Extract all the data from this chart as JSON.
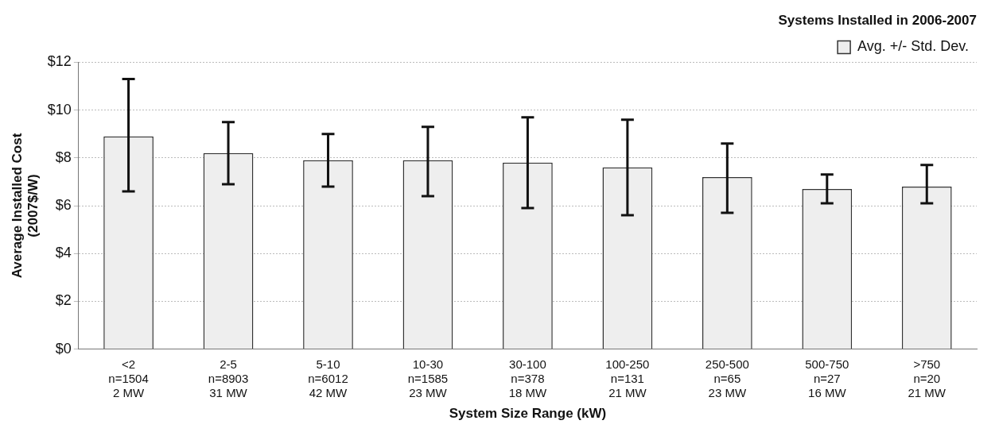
{
  "chart_data": {
    "type": "bar",
    "title": "Systems Installed in 2006-2007",
    "xlabel": "System Size Range (kW)",
    "ylabel": "Average Installed Cost\n(2007$/W)",
    "categories": [
      "<2\nn=1504\n2 MW",
      "2-5\nn=8903\n31 MW",
      "5-10\nn=6012\n42 MW",
      "10-30\nn=1585\n23 MW",
      "30-100\nn=378\n18 MW",
      "100-250\nn=131\n21 MW",
      "250-500\nn=65\n23 MW",
      "500-750\nn=27\n16 MW",
      ">750\nn=20\n21 MW"
    ],
    "series": [
      {
        "name": "Avg. +/- Std. Dev.",
        "color": "#eeeeee",
        "values": [
          8.9,
          8.2,
          7.9,
          7.9,
          7.8,
          7.6,
          7.2,
          6.7,
          6.8
        ],
        "errors": [
          [
            6.6,
            11.3
          ],
          [
            6.9,
            9.5
          ],
          [
            6.8,
            9.0
          ],
          [
            6.4,
            9.3
          ],
          [
            5.9,
            9.7
          ],
          [
            5.6,
            9.6
          ],
          [
            5.7,
            8.6
          ],
          [
            6.1,
            7.3
          ],
          [
            6.1,
            7.7
          ]
        ]
      }
    ],
    "ylim": [
      0,
      12
    ],
    "yticks": [
      {
        "value": 0,
        "label": "$0"
      },
      {
        "value": 2,
        "label": "$2"
      },
      {
        "value": 4,
        "label": "$4"
      },
      {
        "value": 6,
        "label": "$6"
      },
      {
        "value": 8,
        "label": "$8"
      },
      {
        "value": 10,
        "label": "$10"
      },
      {
        "value": 12,
        "label": "$12"
      }
    ],
    "grid": "y",
    "legend": "top right"
  }
}
